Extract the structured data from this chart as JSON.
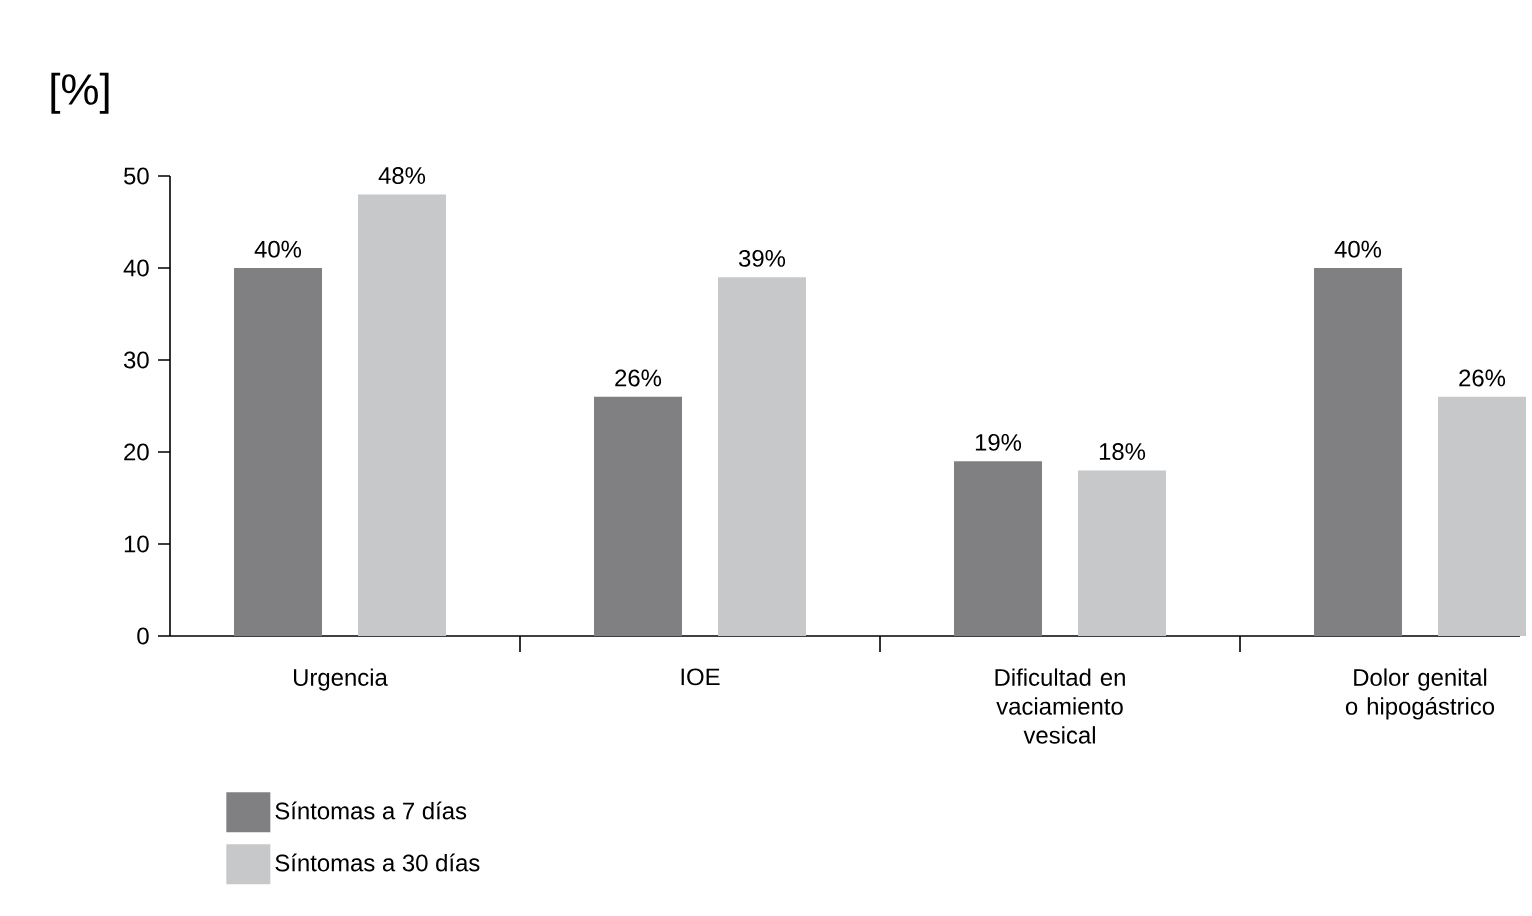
{
  "chart_data": {
    "type": "bar",
    "ylabel": "[%]",
    "categories": [
      "Urgencia",
      "IOE",
      "Dificultad en vaciamiento vesical",
      "Dolor genital o hipogástrico"
    ],
    "series": [
      {
        "name": "Síntomas a 7 días",
        "color": "#808083",
        "values": [
          40,
          26,
          19,
          40
        ],
        "value_labels": [
          "40%",
          "26%",
          "19%",
          "40%"
        ]
      },
      {
        "name": "Síntomas a 30 días",
        "color": "#c7c8ca",
        "values": [
          48,
          39,
          18,
          26
        ],
        "value_labels": [
          "48%",
          "39%",
          "18%",
          "26%"
        ]
      }
    ],
    "ylim": [
      0,
      50
    ],
    "yticks": [
      0,
      10,
      20,
      30,
      40,
      50
    ],
    "legend": "bottom left"
  }
}
